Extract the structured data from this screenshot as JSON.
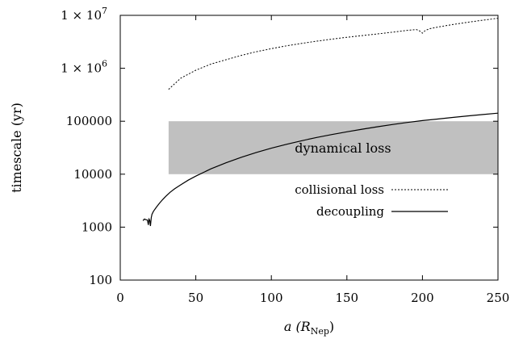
{
  "chart_data": {
    "type": "line",
    "xlabel": "a (R",
    "xlabel_sub": "Nep",
    "xlabel_close": ")",
    "ylabel": "timescale (yr)",
    "xlim": [
      0,
      250
    ],
    "ylim": [
      100,
      10000000
    ],
    "y_scale": "log",
    "x_ticks": [
      0,
      50,
      100,
      150,
      200,
      250
    ],
    "x_tick_labels": [
      "0",
      "50",
      "100",
      "150",
      "200",
      "250"
    ],
    "y_ticks": [
      100,
      1000,
      10000,
      100000,
      1000000,
      10000000
    ],
    "y_tick_labels": [
      "100",
      "1000",
      "10000",
      "100000",
      "1 × 10",
      "1 × 10"
    ],
    "y_tick_exponents": [
      "",
      "",
      "",
      "",
      "6",
      "7"
    ],
    "grid": false,
    "legend_position": "right-center",
    "shaded_region": {
      "label": "dynamical loss",
      "x": [
        32,
        250
      ],
      "y": [
        10000,
        100000
      ],
      "color": "#c0c0c0"
    },
    "series": [
      {
        "name": "collisional loss",
        "style": "dotted",
        "x": [
          32,
          40,
          50,
          60,
          70,
          80,
          90,
          100,
          110,
          120,
          130,
          140,
          150,
          160,
          170,
          180,
          190,
          196,
          198,
          200,
          202,
          205,
          210,
          220,
          230,
          240,
          250
        ],
        "y": [
          400000,
          650000,
          920000,
          1200000,
          1450000,
          1750000,
          2050000,
          2350000,
          2650000,
          2950000,
          3250000,
          3550000,
          3850000,
          4150000,
          4450000,
          4800000,
          5200000,
          5400000,
          5100000,
          4600000,
          5200000,
          5600000,
          6000000,
          6700000,
          7400000,
          8100000,
          8800000
        ]
      },
      {
        "name": "decoupling",
        "style": "solid",
        "x": [
          15,
          16,
          17,
          18,
          18.6,
          19,
          19.5,
          20,
          20.5,
          21,
          22,
          24,
          26,
          28,
          30,
          33,
          36,
          40,
          45,
          50,
          60,
          70,
          80,
          90,
          100,
          110,
          120,
          130,
          140,
          150,
          160,
          170,
          180,
          190,
          200,
          210,
          220,
          230,
          240,
          250
        ],
        "y": [
          1330,
          1420,
          1380,
          1360,
          1100,
          1420,
          1350,
          1050,
          1500,
          1750,
          2000,
          2400,
          2850,
          3300,
          3800,
          4550,
          5300,
          6300,
          7700,
          9200,
          12600,
          16400,
          20800,
          25700,
          31000,
          36700,
          42800,
          49300,
          56100,
          63200,
          70700,
          78500,
          86600,
          95000,
          103000,
          110000,
          118000,
          126000,
          134000,
          142000
        ]
      }
    ]
  }
}
